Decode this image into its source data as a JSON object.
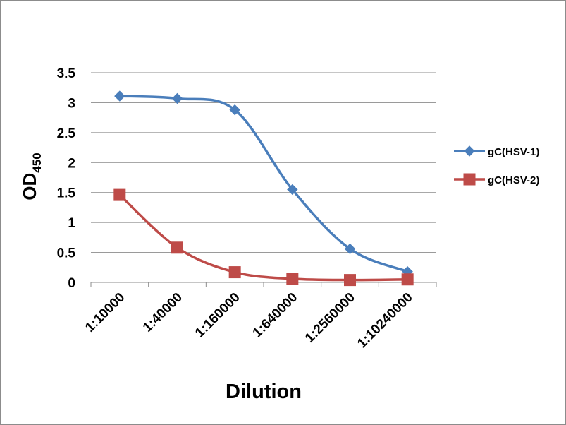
{
  "chart_data": {
    "type": "line",
    "categories": [
      "1:10000",
      "1:40000",
      "1:160000",
      "1:640000",
      "1:2560000",
      "1:10240000"
    ],
    "series": [
      {
        "name": "gC(HSV-1)",
        "values": [
          3.11,
          3.07,
          2.88,
          1.55,
          0.56,
          0.18
        ],
        "color": "#4a7ebb",
        "marker": "diamond"
      },
      {
        "name": "gC(HSV-2)",
        "values": [
          1.46,
          0.58,
          0.17,
          0.06,
          0.04,
          0.05
        ],
        "color": "#be4b48",
        "marker": "square"
      }
    ],
    "xlabel": "Dilution",
    "ylabel_main": "OD",
    "ylabel_sub": "450",
    "ylim": [
      0,
      3.5
    ],
    "yticks": [
      "0",
      "0.5",
      "1",
      "1.5",
      "2",
      "2.5",
      "3",
      "3.5"
    ],
    "ytick_values": [
      0,
      0.5,
      1,
      1.5,
      2,
      2.5,
      3,
      3.5
    ],
    "grid": true,
    "legend_position": "right",
    "smooth_lines": true
  }
}
